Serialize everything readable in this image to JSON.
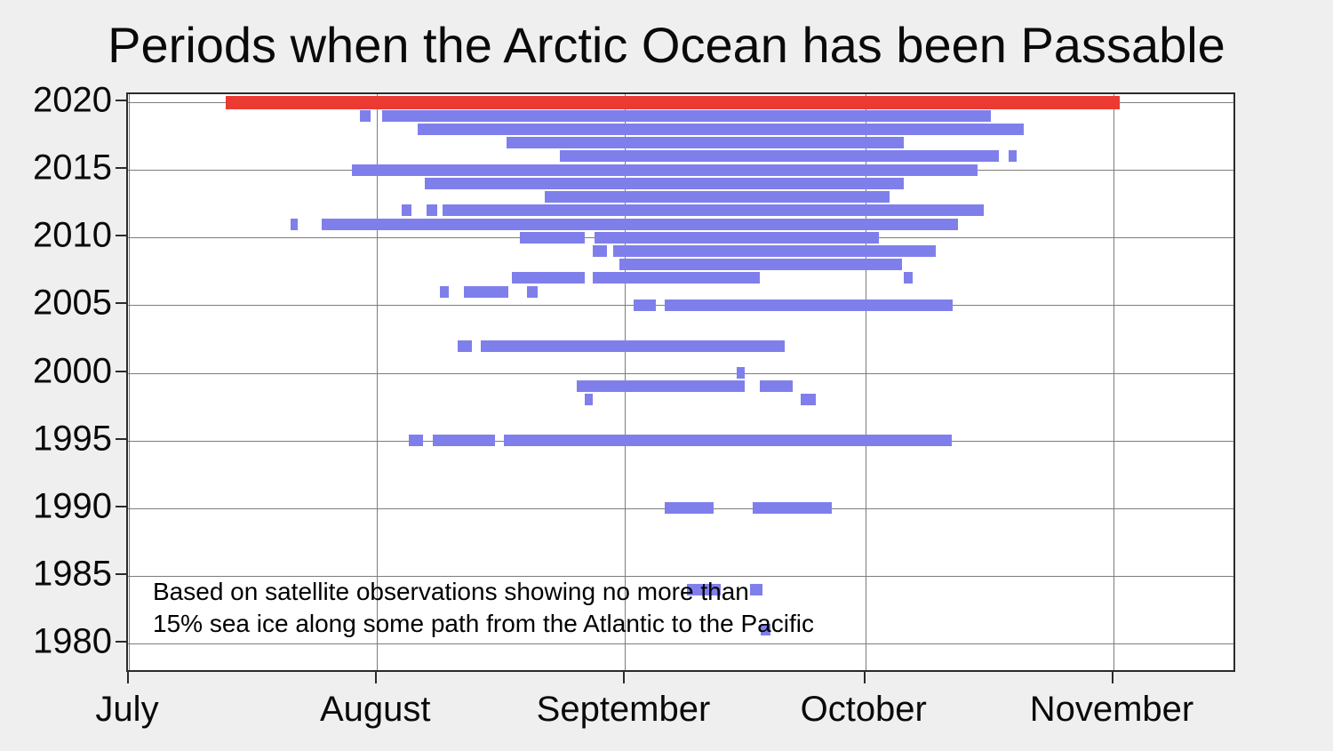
{
  "title": "Periods when the Arctic Ocean has been Passable",
  "annotation": {
    "line1": "Based on satellite observations showing no more than",
    "line2": "15% sea ice along some path from the Atlantic to the Pacific"
  },
  "colors": {
    "passable": "#7f7fec",
    "record": "#ea3a32",
    "background": "#efefef",
    "plot_bg": "#ffffff",
    "grid": "#7d7d7d",
    "frame": "#2b2b2b"
  },
  "chart_data": {
    "type": "bar",
    "subtype": "gantt-timeline",
    "title": "Periods when the Arctic Ocean has been Passable",
    "xlabel": "",
    "ylabel": "",
    "x_axis": {
      "unit": "days since July 1",
      "range_days": [
        0,
        138.2
      ],
      "ticks": [
        {
          "label": "July",
          "day": 0
        },
        {
          "label": "August",
          "day": 31
        },
        {
          "label": "September",
          "day": 62
        },
        {
          "label": "October",
          "day": 92
        },
        {
          "label": "November",
          "day": 123
        }
      ]
    },
    "y_axis": {
      "unit": "year",
      "range": [
        1979,
        2021
      ],
      "tick_years": [
        2020,
        2015,
        2010,
        2005,
        2000,
        1995,
        1990,
        1985,
        1980
      ]
    },
    "legend": "none",
    "grid": true,
    "series": [
      {
        "year": 2020,
        "style": "record",
        "segments": [
          [
            12.1,
            123.8
          ]
        ]
      },
      {
        "year": 2019,
        "style": "passable",
        "segments": [
          [
            28.9,
            30.2
          ],
          [
            31.6,
            107.7
          ]
        ]
      },
      {
        "year": 2018,
        "style": "passable",
        "segments": [
          [
            36.1,
            111.8
          ]
        ]
      },
      {
        "year": 2017,
        "style": "passable",
        "segments": [
          [
            47.2,
            96.8
          ]
        ]
      },
      {
        "year": 2016,
        "style": "passable",
        "segments": [
          [
            53.8,
            108.7
          ],
          [
            109.9,
            110.9
          ]
        ]
      },
      {
        "year": 2015,
        "style": "passable",
        "segments": [
          [
            27.9,
            106.0
          ]
        ]
      },
      {
        "year": 2014,
        "style": "passable",
        "segments": [
          [
            37.0,
            96.8
          ]
        ]
      },
      {
        "year": 2013,
        "style": "passable",
        "segments": [
          [
            51.9,
            95.0
          ]
        ]
      },
      {
        "year": 2012,
        "style": "passable",
        "segments": [
          [
            34.1,
            35.3
          ],
          [
            37.2,
            38.5
          ],
          [
            39.2,
            106.8
          ]
        ]
      },
      {
        "year": 2011,
        "style": "passable",
        "segments": [
          [
            20.2,
            21.1
          ],
          [
            24.1,
            103.6
          ]
        ]
      },
      {
        "year": 2010,
        "style": "passable",
        "segments": [
          [
            48.9,
            57.0
          ],
          [
            58.2,
            93.7
          ]
        ]
      },
      {
        "year": 2009,
        "style": "passable",
        "segments": [
          [
            58.0,
            59.7
          ],
          [
            60.5,
            100.8
          ]
        ]
      },
      {
        "year": 2008,
        "style": "passable",
        "segments": [
          [
            61.3,
            96.6
          ]
        ]
      },
      {
        "year": 2007,
        "style": "passable",
        "segments": [
          [
            47.9,
            56.9
          ],
          [
            58.0,
            78.8
          ],
          [
            96.8,
            97.9
          ]
        ]
      },
      {
        "year": 2006,
        "style": "passable",
        "segments": [
          [
            38.8,
            40.0
          ],
          [
            41.8,
            47.4
          ],
          [
            49.7,
            51.1
          ]
        ]
      },
      {
        "year": 2005,
        "style": "passable",
        "segments": [
          [
            63.0,
            65.8
          ],
          [
            66.9,
            102.9
          ]
        ]
      },
      {
        "year": 2002,
        "style": "passable",
        "segments": [
          [
            41.1,
            42.8
          ],
          [
            44.0,
            81.9
          ]
        ]
      },
      {
        "year": 2000,
        "style": "passable",
        "segments": [
          [
            75.9,
            76.9
          ]
        ]
      },
      {
        "year": 1999,
        "style": "passable",
        "segments": [
          [
            55.9,
            76.9
          ],
          [
            78.8,
            82.9
          ]
        ]
      },
      {
        "year": 1998,
        "style": "passable",
        "segments": [
          [
            56.9,
            57.9
          ],
          [
            83.9,
            85.8
          ]
        ]
      },
      {
        "year": 1995,
        "style": "passable",
        "segments": [
          [
            35.0,
            36.8
          ],
          [
            38.0,
            45.7
          ],
          [
            46.9,
            102.8
          ]
        ]
      },
      {
        "year": 1990,
        "style": "passable",
        "segments": [
          [
            66.9,
            73.0
          ],
          [
            77.9,
            87.8
          ]
        ]
      },
      {
        "year": 1984,
        "style": "passable",
        "segments": [
          [
            69.7,
            73.9
          ],
          [
            77.6,
            79.1
          ]
        ]
      },
      {
        "year": 1981,
        "style": "passable",
        "segments": [
          [
            78.9,
            80.2
          ]
        ]
      }
    ]
  }
}
